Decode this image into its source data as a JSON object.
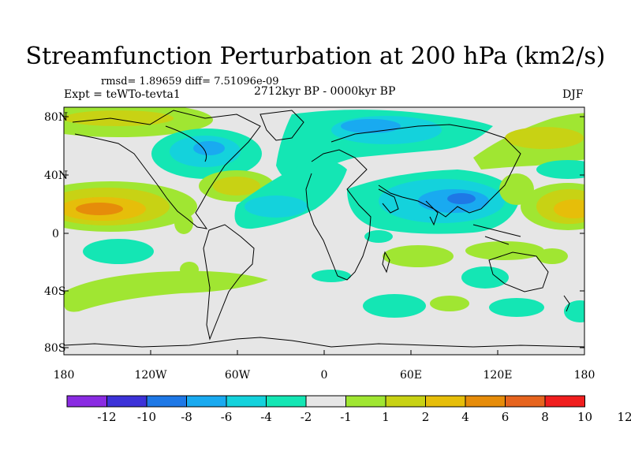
{
  "title": "Streamfunction Perturbation at 200 hPa (km2/s)",
  "stats_line": "rmsd= 1.89659 diff= 7.51096e-09",
  "period": "2712kyr BP - 0000kyr BP",
  "experiment": "Expt = teWTo-tevta1",
  "season": "DJF",
  "axes": {
    "y_ticks": [
      "80N",
      "40N",
      "0",
      "40S",
      "80S"
    ],
    "x_ticks": [
      "180",
      "120W",
      "60W",
      "0",
      "60E",
      "120E",
      "180"
    ]
  },
  "colorbar": {
    "colors": [
      "#8a2be2",
      "#3c32d8",
      "#1e78e6",
      "#19aaf0",
      "#14d2dc",
      "#14e6b4",
      "#e6e6e6",
      "#a0e632",
      "#c8d214",
      "#e6be0a",
      "#e68c0a",
      "#e6641e",
      "#f01e1e"
    ],
    "labels": [
      "-12",
      "-10",
      "-8",
      "-6",
      "-4",
      "-2",
      "-1",
      "1",
      "2",
      "4",
      "6",
      "8",
      "10",
      "12"
    ]
  }
}
